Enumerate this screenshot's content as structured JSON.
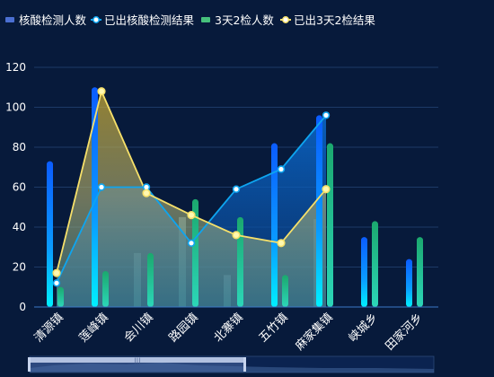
{
  "colors": {
    "background": "#071a3b",
    "grid": "#1d3a67",
    "axis": "#3b78c7",
    "text": "#ffffff",
    "series1": "#0f6fff",
    "series2": "#0ea5f0",
    "series3": "#13b68d",
    "series4": "#f6e06a"
  },
  "chart_data": {
    "type": "bar",
    "categories": [
      "清源镇",
      "莲峰镇",
      "会川镇",
      "路园镇",
      "北寨镇",
      "五竹镇",
      "麻家集镇",
      "峡城乡",
      "田家河乡"
    ],
    "y_ticks": [
      0,
      20,
      40,
      60,
      80,
      100,
      120
    ],
    "ylim": [
      0,
      120
    ],
    "grid": true,
    "legend_position": "top-left",
    "series": [
      {
        "name": "核酸检测人数",
        "type": "bar",
        "values": [
          73,
          110,
          null,
          null,
          null,
          82,
          96,
          35,
          24
        ]
      },
      {
        "name": "已出核酸检测结果",
        "type": "area-line",
        "values": [
          12,
          60,
          60,
          32,
          59,
          69,
          96,
          null,
          null
        ]
      },
      {
        "name": "3天2检人数",
        "type": "bar",
        "values": [
          10,
          18,
          27,
          54,
          45,
          16,
          82,
          43,
          35
        ]
      },
      {
        "name": "已出3天2检结果",
        "type": "area-line",
        "values": [
          17,
          108,
          57,
          46,
          36,
          32,
          59,
          null,
          null
        ]
      }
    ],
    "background_bars": [
      null,
      null,
      27,
      45,
      16,
      null,
      44,
      null,
      null
    ]
  },
  "zoom": {
    "label": "|||"
  }
}
